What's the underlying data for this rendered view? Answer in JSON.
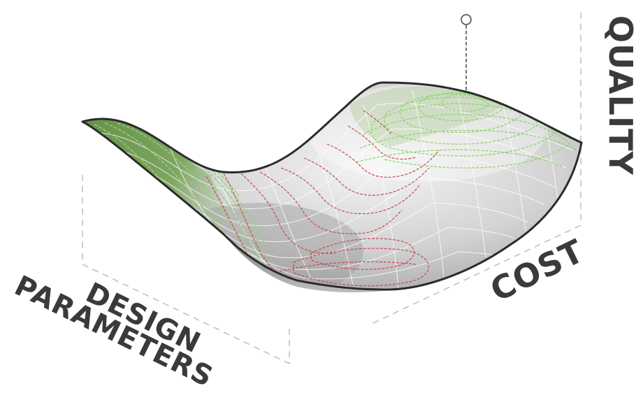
{
  "diagram": {
    "axes": {
      "quality": "QUALITY",
      "cost": "COST",
      "design_line1": "DESIGN",
      "design_line2": "PARAMETERS"
    },
    "colors": {
      "surface_light": "#f2f2f2",
      "surface_mid": "#c4c4c4",
      "surface_dark": "#9a9a9a",
      "green_region": "#6e9a4e",
      "green_contour": "#8fd66a",
      "red_contour": "#c44a55",
      "outline": "#2b2b2b",
      "axis_text": "#3a3a3a",
      "dashed_line": "#bdbdbd",
      "marker_line": "#444444"
    }
  }
}
